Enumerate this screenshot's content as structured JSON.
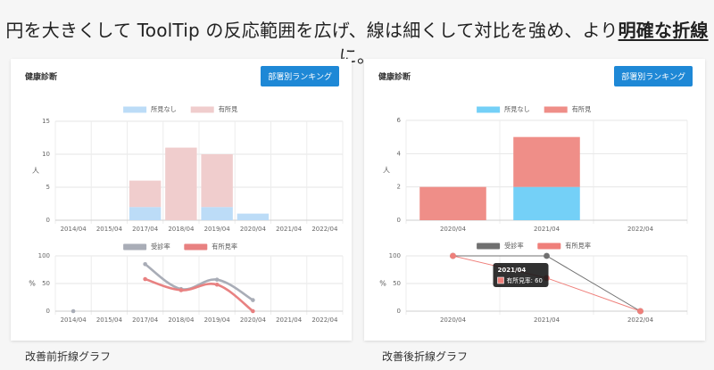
{
  "headline": {
    "prefix": "円を大きくして ToolTip の反応範囲を広げ、線は細くして対比を強め、より",
    "emphasis": "明確な折線",
    "suffix": "に。"
  },
  "panels": [
    {
      "title": "健康診断",
      "button_label": "部署別ランキング",
      "caption": "改善前折線グラフ"
    },
    {
      "title": "健康診断",
      "button_label": "部署別ランキング",
      "caption": "改善後折線グラフ"
    }
  ],
  "chart_data": [
    {
      "type": "bar",
      "stacked": true,
      "panel": "before",
      "categories": [
        "2014/04",
        "2015/04",
        "2017/04",
        "2018/04",
        "2019/04",
        "2020/04",
        "2021/04",
        "2022/04"
      ],
      "series": [
        {
          "name": "所見なし",
          "values": [
            0,
            0,
            2,
            0,
            2,
            1,
            0,
            0
          ],
          "color": "#bcdcf7"
        },
        {
          "name": "有所見",
          "values": [
            0,
            0,
            4,
            11,
            8,
            0,
            0,
            0
          ],
          "color": "#f0cdcd"
        }
      ],
      "ylabel": "人",
      "ylim": [
        0,
        15
      ],
      "yticks": [
        0,
        5,
        10,
        15
      ]
    },
    {
      "type": "line",
      "panel": "before",
      "categories": [
        "2014/04",
        "2015/04",
        "2017/04",
        "2018/04",
        "2019/04",
        "2020/04",
        "2021/04",
        "2022/04"
      ],
      "series": [
        {
          "name": "受診率",
          "values": [
            0,
            null,
            85,
            40,
            57,
            20,
            null,
            null
          ],
          "color": "#a9adb7"
        },
        {
          "name": "有所見率",
          "values": [
            null,
            null,
            58,
            38,
            48,
            0,
            null,
            null
          ],
          "color": "#e88181"
        }
      ],
      "ylabel": "%",
      "ylim": [
        0,
        100
      ],
      "yticks": [
        0,
        50,
        100
      ]
    },
    {
      "type": "bar",
      "stacked": true,
      "panel": "after",
      "categories": [
        "2020/04",
        "2021/04",
        "2022/04"
      ],
      "series": [
        {
          "name": "所見なし",
          "values": [
            0,
            2,
            0
          ],
          "color": "#74d0f7"
        },
        {
          "name": "有所見",
          "values": [
            2,
            3,
            0
          ],
          "color": "#ef8e88"
        }
      ],
      "ylabel": "人",
      "ylim": [
        0,
        6
      ],
      "yticks": [
        0,
        2,
        4,
        6
      ]
    },
    {
      "type": "line",
      "panel": "after",
      "categories": [
        "2020/04",
        "2021/04",
        "2022/04"
      ],
      "series": [
        {
          "name": "受診率",
          "values": [
            100,
            100,
            0
          ],
          "color": "#707070"
        },
        {
          "name": "有所見率",
          "values": [
            100,
            60,
            0
          ],
          "color": "#ef7f7a"
        }
      ],
      "ylabel": "%",
      "ylim": [
        0,
        100
      ],
      "yticks": [
        0,
        50,
        100
      ],
      "tooltip": {
        "title": "2021/04",
        "label": "有所見率",
        "value": 60
      }
    }
  ]
}
